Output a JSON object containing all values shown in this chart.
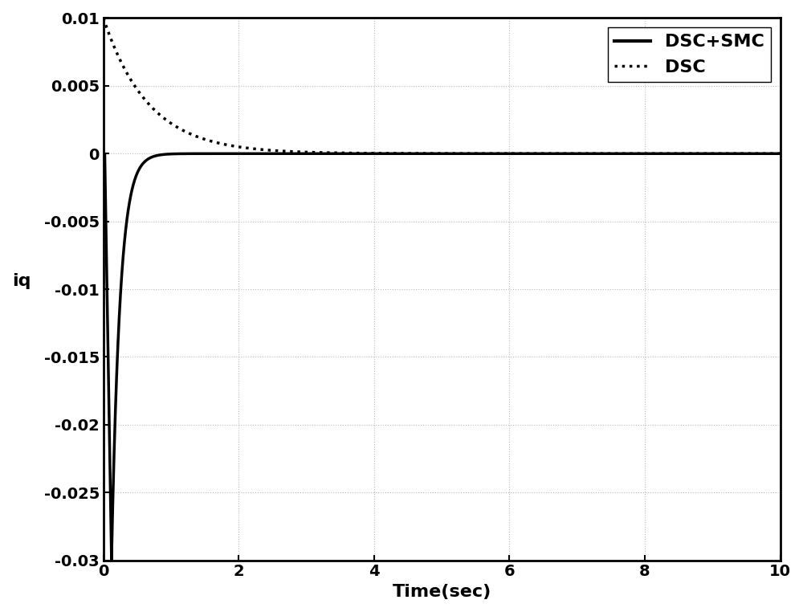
{
  "title": "",
  "xlabel": "Time(sec)",
  "ylabel": "iq",
  "xlim": [
    0,
    10
  ],
  "ylim": [
    -0.03,
    0.01
  ],
  "yticks": [
    -0.03,
    -0.025,
    -0.02,
    -0.015,
    -0.01,
    -0.005,
    0,
    0.005,
    0.01
  ],
  "xticks": [
    0,
    2,
    4,
    6,
    8,
    10
  ],
  "legend_labels": [
    "DSC+SMC",
    "DSC"
  ],
  "line1_color": "#000000",
  "line2_color": "#000000",
  "background_color": "#ffffff",
  "grid_color": "#aaaaaa",
  "dsc_smc_spike": -0.03,
  "dsc_initial": 0.01
}
